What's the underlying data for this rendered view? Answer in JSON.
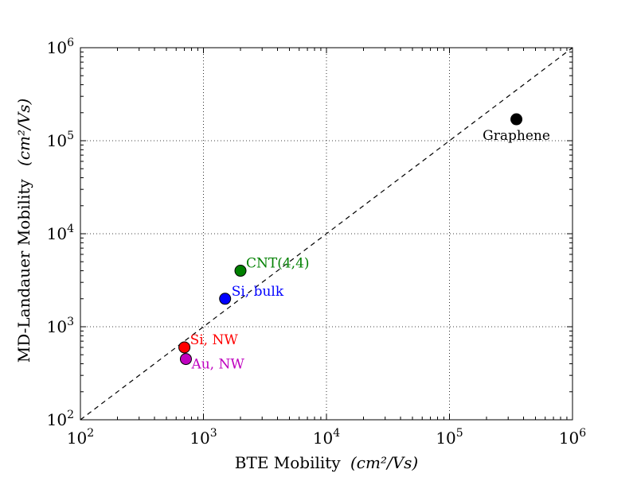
{
  "chart_data": {
    "type": "scatter",
    "title": "",
    "xlabel": "BTE Mobility",
    "xlabel_unit": "(cm²/Vs)",
    "ylabel": "MD-Landauer Mobility",
    "ylabel_unit": "(cm²/Vs)",
    "xscale": "log",
    "yscale": "log",
    "xlim": [
      100,
      1000000
    ],
    "ylim": [
      100,
      1000000
    ],
    "grid": true,
    "x_ticks": [
      {
        "base": "10",
        "exp": "2",
        "value": 100
      },
      {
        "base": "10",
        "exp": "3",
        "value": 1000
      },
      {
        "base": "10",
        "exp": "4",
        "value": 10000
      },
      {
        "base": "10",
        "exp": "5",
        "value": 100000
      },
      {
        "base": "10",
        "exp": "6",
        "value": 1000000
      }
    ],
    "y_ticks": [
      {
        "base": "10",
        "exp": "2",
        "value": 100
      },
      {
        "base": "10",
        "exp": "3",
        "value": 1000
      },
      {
        "base": "10",
        "exp": "4",
        "value": 10000
      },
      {
        "base": "10",
        "exp": "5",
        "value": 100000
      },
      {
        "base": "10",
        "exp": "6",
        "value": 1000000
      }
    ],
    "reference_line": {
      "style": "dashed",
      "color": "#000000",
      "from": [
        100,
        100
      ],
      "to": [
        1000000,
        1000000
      ]
    },
    "points": [
      {
        "label": "Graphene",
        "x": 350000,
        "y": 170000,
        "color": "#000000",
        "label_pos": "below"
      },
      {
        "label": "CNT(4,4)",
        "x": 2000,
        "y": 4000,
        "color": "#008000",
        "label_pos": "upper-right"
      },
      {
        "label": "Si, bulk",
        "x": 1500,
        "y": 2000,
        "color": "#0000ff",
        "label_pos": "right"
      },
      {
        "label": "Si, NW",
        "x": 700,
        "y": 600,
        "color": "#ff0000",
        "label_pos": "upper-right"
      },
      {
        "label": "Au, NW",
        "x": 720,
        "y": 450,
        "color": "#bf00bf",
        "label_pos": "lower-right"
      }
    ]
  }
}
